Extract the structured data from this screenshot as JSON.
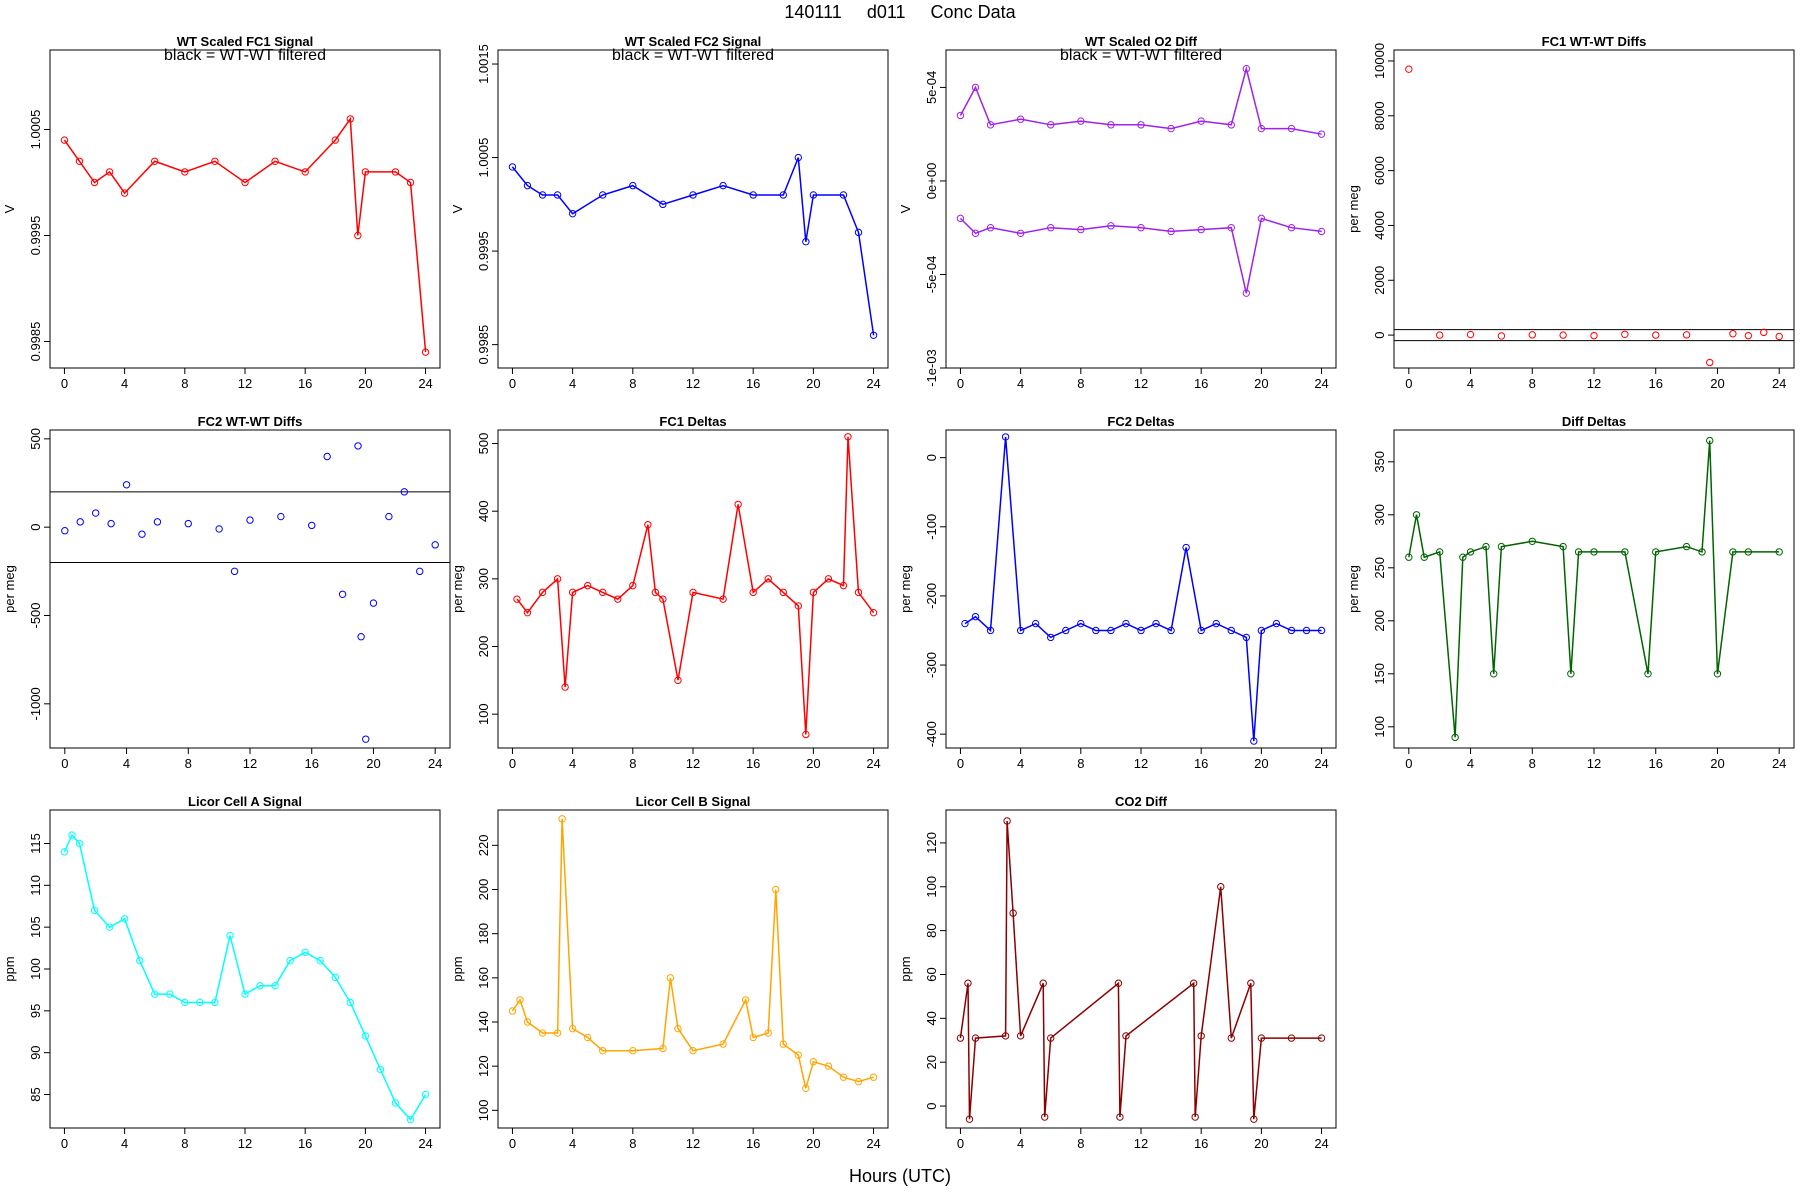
{
  "page": {
    "title_parts": [
      "140111",
      "d011",
      "Conc Data"
    ],
    "xlabel": "Hours (UTC)"
  },
  "colors": {
    "red": "#ff0000",
    "darkred": "#8b0000",
    "blue": "#0000ff",
    "violet": "#ee82ee",
    "purple": "#a020f0",
    "green": "#006400",
    "cyan": "#00ffff",
    "orange": "#ffa500",
    "black": "#000000"
  },
  "chart_data": [
    {
      "type": "line",
      "title": "WT Scaled FC1 Signal",
      "annotation": "black = WT-WT filtered",
      "xlabel": "",
      "ylabel": "V",
      "xlim": [
        0,
        24
      ],
      "ylim": [
        0.99825,
        1.00125
      ],
      "xticks": [
        "0",
        "4",
        "8",
        "12",
        "16",
        "20",
        "24"
      ],
      "yticks": [
        {
          "v": 0.9985,
          "label": "0.9985"
        },
        {
          "v": 0.9995,
          "label": "0.9995"
        },
        {
          "v": 1.0005,
          "label": "1.0005"
        }
      ],
      "series": [
        {
          "name": "FC1 signal",
          "color": "red",
          "x": [
            0,
            1,
            2,
            3,
            4,
            6,
            8,
            10,
            12,
            14,
            16,
            18,
            19,
            19.5,
            20,
            22,
            23,
            24
          ],
          "y": [
            1.0004,
            1.0002,
            1.0,
            1.0001,
            0.9999,
            1.0002,
            1.0001,
            1.0002,
            1.0,
            1.0002,
            1.0001,
            1.0004,
            1.0006,
            0.9995,
            1.0001,
            1.0001,
            1.0,
            0.9984
          ]
        }
      ]
    },
    {
      "type": "line",
      "title": "WT Scaled FC2 Signal",
      "annotation": "black = WT-WT filtered",
      "xlabel": "",
      "ylabel": "V",
      "xlim": [
        0,
        24
      ],
      "ylim": [
        0.99825,
        1.00165
      ],
      "xticks": [
        "0",
        "4",
        "8",
        "12",
        "16",
        "20",
        "24"
      ],
      "yticks": [
        {
          "v": 0.9985,
          "label": "0.9985"
        },
        {
          "v": 0.9995,
          "label": "0.9995"
        },
        {
          "v": 1.0005,
          "label": "1.0005"
        },
        {
          "v": 1.0015,
          "label": "1.0015"
        }
      ],
      "series": [
        {
          "name": "FC2 signal",
          "color": "blue",
          "x": [
            0,
            1,
            2,
            3,
            4,
            6,
            8,
            10,
            12,
            14,
            16,
            18,
            19,
            19.5,
            20,
            22,
            23,
            24
          ],
          "y": [
            1.0004,
            1.0002,
            1.0001,
            1.0001,
            0.9999,
            1.0001,
            1.0002,
            1.0,
            1.0001,
            1.0002,
            1.0001,
            1.0001,
            1.0005,
            0.9996,
            1.0001,
            1.0001,
            0.9997,
            0.9986
          ]
        }
      ]
    },
    {
      "type": "line",
      "title": "WT Scaled O2 Diff",
      "annotation": "black = WT-WT filtered",
      "xlabel": "",
      "ylabel": "V",
      "xlim": [
        0,
        24
      ],
      "ylim": [
        -0.001,
        0.0007
      ],
      "xticks": [
        "0",
        "4",
        "8",
        "12",
        "16",
        "20",
        "24"
      ],
      "yticks": [
        {
          "v": -0.001,
          "label": "-1e-03"
        },
        {
          "v": -0.0005,
          "label": "-5e-04"
        },
        {
          "v": 0,
          "label": "0e+00"
        },
        {
          "v": 0.0005,
          "label": "5e-04"
        }
      ],
      "series": [
        {
          "name": "O2 diff upper",
          "color": "purple",
          "x": [
            0,
            1,
            2,
            4,
            6,
            8,
            10,
            12,
            14,
            16,
            18,
            19,
            20,
            22,
            24
          ],
          "y": [
            0.00035,
            0.0005,
            0.0003,
            0.00033,
            0.0003,
            0.00032,
            0.0003,
            0.0003,
            0.00028,
            0.00032,
            0.0003,
            0.0006,
            0.00028,
            0.00028,
            0.00025
          ]
        },
        {
          "name": "O2 diff lower",
          "color": "purple",
          "x": [
            0,
            1,
            2,
            4,
            6,
            8,
            10,
            12,
            14,
            16,
            18,
            19,
            20,
            22,
            24
          ],
          "y": [
            -0.0002,
            -0.00028,
            -0.00025,
            -0.00028,
            -0.00025,
            -0.00026,
            -0.00024,
            -0.00025,
            -0.00027,
            -0.00026,
            -0.00025,
            -0.0006,
            -0.0002,
            -0.00025,
            -0.00027
          ]
        }
      ]
    },
    {
      "type": "scatter",
      "title": "FC1 WT-WT Diffs",
      "xlabel": "",
      "ylabel": "per meg",
      "xlim": [
        0,
        24
      ],
      "ylim": [
        -1200,
        10400
      ],
      "xticks": [
        "0",
        "4",
        "8",
        "12",
        "16",
        "20",
        "24"
      ],
      "yticks": [
        {
          "v": 0,
          "label": "0"
        },
        {
          "v": 2000,
          "label": "2000"
        },
        {
          "v": 4000,
          "label": "4000"
        },
        {
          "v": 6000,
          "label": "6000"
        },
        {
          "v": 8000,
          "label": "8000"
        },
        {
          "v": 10000,
          "label": "10000"
        }
      ],
      "hlines": [
        200,
        -200
      ],
      "series": [
        {
          "name": "FC1 WT-WT",
          "color": "red",
          "x": [
            0,
            2,
            4,
            6,
            8,
            10,
            12,
            14,
            16,
            18,
            19.5,
            21,
            22,
            23,
            24
          ],
          "y": [
            9700,
            0,
            20,
            -30,
            10,
            0,
            -20,
            30,
            0,
            10,
            -1000,
            50,
            -20,
            100,
            -50
          ]
        }
      ]
    },
    {
      "type": "scatter",
      "title": "FC2 WT-WT Diffs",
      "xlabel": "",
      "ylabel": "per meg",
      "xlim": [
        0,
        24
      ],
      "ylim": [
        -1250,
        550
      ],
      "xticks": [
        "0",
        "4",
        "8",
        "12",
        "16",
        "20",
        "24"
      ],
      "yticks": [
        {
          "v": -1000,
          "label": "-1000"
        },
        {
          "v": -500,
          "label": "-500"
        },
        {
          "v": 0,
          "label": "0"
        },
        {
          "v": 500,
          "label": "500"
        }
      ],
      "hlines": [
        200,
        -200
      ],
      "series": [
        {
          "name": "FC2 WT-WT",
          "color": "blue",
          "x": [
            0,
            1,
            2,
            3,
            4,
            5,
            6,
            8,
            10,
            11,
            12,
            14,
            16,
            17,
            18,
            19,
            19.2,
            19.5,
            20,
            21,
            22,
            23,
            24
          ],
          "y": [
            -20,
            30,
            80,
            20,
            240,
            -40,
            30,
            20,
            -10,
            -250,
            40,
            60,
            10,
            400,
            -380,
            460,
            -620,
            -1200,
            -430,
            60,
            200,
            -250,
            -100
          ]
        }
      ]
    },
    {
      "type": "line",
      "title": "FC1 Deltas",
      "xlabel": "",
      "ylabel": "per meg",
      "xlim": [
        0,
        24
      ],
      "ylim": [
        50,
        520
      ],
      "xticks": [
        "0",
        "4",
        "8",
        "12",
        "16",
        "20",
        "24"
      ],
      "yticks": [
        {
          "v": 100,
          "label": "100"
        },
        {
          "v": 200,
          "label": "200"
        },
        {
          "v": 300,
          "label": "300"
        },
        {
          "v": 400,
          "label": "400"
        },
        {
          "v": 500,
          "label": "500"
        }
      ],
      "series": [
        {
          "name": "FC1 deltas",
          "color": "red",
          "x": [
            0.3,
            1,
            2,
            3,
            3.5,
            4,
            5,
            6,
            7,
            8,
            9,
            9.5,
            10,
            11,
            12,
            14,
            15,
            16,
            17,
            18,
            19,
            19.5,
            20,
            21,
            22,
            22.3,
            23,
            24
          ],
          "y": [
            270,
            250,
            280,
            300,
            140,
            280,
            290,
            280,
            270,
            290,
            380,
            280,
            270,
            150,
            280,
            270,
            410,
            280,
            300,
            280,
            260,
            70,
            280,
            300,
            290,
            510,
            280,
            250
          ]
        }
      ]
    },
    {
      "type": "line",
      "title": "FC2 Deltas",
      "xlabel": "",
      "ylabel": "per meg",
      "xlim": [
        0,
        24
      ],
      "ylim": [
        -420,
        40
      ],
      "xticks": [
        "0",
        "4",
        "8",
        "12",
        "16",
        "20",
        "24"
      ],
      "yticks": [
        {
          "v": -400,
          "label": "-400"
        },
        {
          "v": -300,
          "label": "-300"
        },
        {
          "v": -200,
          "label": "-200"
        },
        {
          "v": -100,
          "label": "-100"
        },
        {
          "v": 0,
          "label": "0"
        }
      ],
      "series": [
        {
          "name": "FC2 deltas",
          "color": "blue",
          "x": [
            0.3,
            1,
            2,
            3,
            4,
            5,
            6,
            7,
            8,
            9,
            10,
            11,
            12,
            13,
            14,
            15,
            16,
            17,
            18,
            19,
            19.5,
            20,
            21,
            22,
            23,
            24
          ],
          "y": [
            -240,
            -230,
            -250,
            30,
            -250,
            -240,
            -260,
            -250,
            -240,
            -250,
            -250,
            -240,
            -250,
            -240,
            -250,
            -130,
            -250,
            -240,
            -250,
            -260,
            -410,
            -250,
            -240,
            -250,
            -250,
            -250
          ]
        }
      ]
    },
    {
      "type": "line",
      "title": "Diff Deltas",
      "xlabel": "",
      "ylabel": "per meg",
      "xlim": [
        0,
        24
      ],
      "ylim": [
        80,
        380
      ],
      "xticks": [
        "0",
        "4",
        "8",
        "12",
        "16",
        "20",
        "24"
      ],
      "yticks": [
        {
          "v": 100,
          "label": "100"
        },
        {
          "v": 150,
          "label": "150"
        },
        {
          "v": 200,
          "label": "200"
        },
        {
          "v": 250,
          "label": "250"
        },
        {
          "v": 300,
          "label": "300"
        },
        {
          "v": 350,
          "label": "350"
        }
      ],
      "series": [
        {
          "name": "Diff deltas",
          "color": "green",
          "x": [
            0,
            0.5,
            1,
            2,
            3,
            3.5,
            4,
            5,
            5.5,
            6,
            8,
            10,
            10.5,
            11,
            12,
            14,
            15.5,
            16,
            18,
            19,
            19.5,
            20,
            21,
            22,
            24
          ],
          "y": [
            260,
            300,
            260,
            265,
            90,
            260,
            265,
            270,
            150,
            270,
            275,
            270,
            150,
            265,
            265,
            265,
            150,
            265,
            270,
            265,
            370,
            150,
            265,
            265,
            265
          ]
        }
      ]
    },
    {
      "type": "line",
      "title": "Licor Cell A Signal",
      "xlabel": "",
      "ylabel": "ppm",
      "xlim": [
        0,
        24
      ],
      "ylim": [
        81,
        119
      ],
      "xticks": [
        "0",
        "4",
        "8",
        "12",
        "16",
        "20",
        "24"
      ],
      "yticks": [
        {
          "v": 85,
          "label": "85"
        },
        {
          "v": 90,
          "label": "90"
        },
        {
          "v": 95,
          "label": "95"
        },
        {
          "v": 100,
          "label": "100"
        },
        {
          "v": 105,
          "label": "105"
        },
        {
          "v": 110,
          "label": "110"
        },
        {
          "v": 115,
          "label": "115"
        }
      ],
      "series": [
        {
          "name": "Cell A",
          "color": "cyan",
          "x": [
            0,
            0.5,
            1,
            2,
            3,
            4,
            5,
            6,
            7,
            8,
            9,
            10,
            11,
            12,
            13,
            14,
            15,
            16,
            17,
            18,
            19,
            20,
            21,
            22,
            23,
            24
          ],
          "y": [
            114,
            116,
            115,
            107,
            105,
            106,
            101,
            97,
            97,
            96,
            96,
            96,
            104,
            97,
            98,
            98,
            101,
            102,
            101,
            99,
            96,
            92,
            88,
            84,
            82,
            85
          ]
        }
      ]
    },
    {
      "type": "line",
      "title": "Licor Cell B Signal",
      "xlabel": "",
      "ylabel": "ppm",
      "xlim": [
        0,
        24
      ],
      "ylim": [
        92,
        236
      ],
      "xticks": [
        "0",
        "4",
        "8",
        "12",
        "16",
        "20",
        "24"
      ],
      "yticks": [
        {
          "v": 100,
          "label": "100"
        },
        {
          "v": 120,
          "label": "120"
        },
        {
          "v": 140,
          "label": "140"
        },
        {
          "v": 160,
          "label": "160"
        },
        {
          "v": 180,
          "label": "180"
        },
        {
          "v": 200,
          "label": "200"
        },
        {
          "v": 220,
          "label": "220"
        }
      ],
      "series": [
        {
          "name": "Cell B",
          "color": "orange",
          "x": [
            0,
            0.5,
            1,
            2,
            3,
            3.3,
            4,
            5,
            6,
            8,
            10,
            10.5,
            11,
            12,
            14,
            15.5,
            16,
            17,
            17.5,
            18,
            19,
            19.5,
            20,
            21,
            22,
            23,
            24
          ],
          "y": [
            145,
            150,
            140,
            135,
            135,
            232,
            137,
            133,
            127,
            127,
            128,
            160,
            137,
            127,
            130,
            150,
            133,
            135,
            200,
            130,
            125,
            110,
            122,
            120,
            115,
            113,
            115
          ]
        }
      ]
    },
    {
      "type": "line",
      "title": "CO2 Diff",
      "xlabel": "",
      "ylabel": "ppm",
      "xlim": [
        0,
        24
      ],
      "ylim": [
        -10,
        135
      ],
      "xticks": [
        "0",
        "4",
        "8",
        "12",
        "16",
        "20",
        "24"
      ],
      "yticks": [
        {
          "v": 0,
          "label": "0"
        },
        {
          "v": 20,
          "label": "20"
        },
        {
          "v": 40,
          "label": "40"
        },
        {
          "v": 60,
          "label": "60"
        },
        {
          "v": 80,
          "label": "80"
        },
        {
          "v": 100,
          "label": "100"
        },
        {
          "v": 120,
          "label": "120"
        }
      ],
      "series": [
        {
          "name": "CO2 diff",
          "color": "darkred",
          "x": [
            0,
            0.5,
            0.6,
            1,
            3,
            3.1,
            3.5,
            4,
            5.5,
            5.6,
            6,
            10.5,
            10.6,
            11,
            15.5,
            15.6,
            16,
            17.3,
            18,
            19.3,
            19.5,
            20,
            22,
            24
          ],
          "y": [
            31,
            56,
            -6,
            31,
            32,
            130,
            88,
            32,
            56,
            -5,
            31,
            56,
            -5,
            32,
            56,
            -5,
            32,
            100,
            31,
            56,
            -6,
            31,
            31,
            31
          ]
        }
      ]
    }
  ]
}
